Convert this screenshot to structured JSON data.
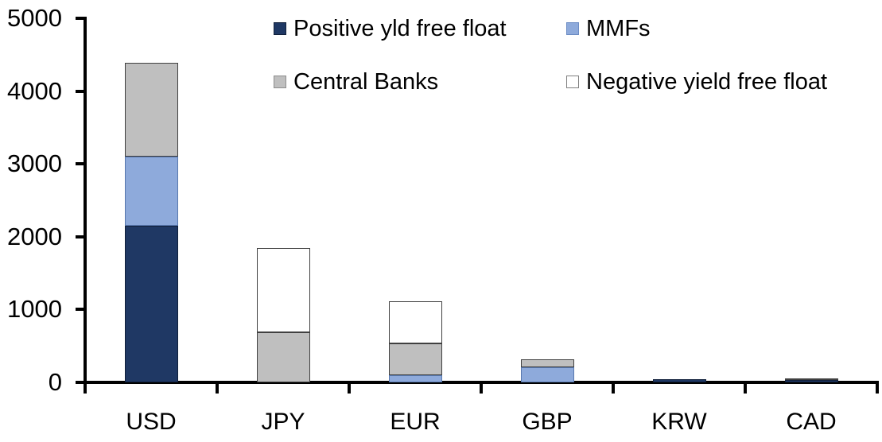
{
  "chart_data": {
    "type": "bar",
    "stacked": true,
    "title": "",
    "xlabel": "",
    "ylabel": "",
    "categories": [
      "USD",
      "JPY",
      "EUR",
      "GBP",
      "KRW",
      "CAD"
    ],
    "series": [
      {
        "name": "Positive yld free float",
        "color": "#1F3864",
        "border": "#11203B",
        "swatch_border": "#11203B",
        "values": [
          2150,
          0,
          0,
          0,
          45,
          30
        ]
      },
      {
        "name": "MMFs",
        "color": "#8EAADB",
        "border": "#5878AE",
        "swatch_border": "#6C8CC4",
        "values": [
          950,
          0,
          100,
          210,
          0,
          0
        ]
      },
      {
        "name": "Central Banks",
        "color": "#BFBFBF",
        "border": "#404040",
        "swatch_border": "#8C8C8C",
        "values": [
          1290,
          690,
          440,
          110,
          0,
          30
        ]
      },
      {
        "name": "Negative yield free float",
        "color": "#FFFFFF",
        "border": "#404040",
        "swatch_border": "#7F7F7F",
        "values": [
          0,
          1160,
          570,
          0,
          0,
          0
        ]
      }
    ],
    "totals": {
      "USD": 4390,
      "JPY": 1850,
      "EUR": 1110,
      "GBP": 320,
      "KRW": 45,
      "CAD": 60
    },
    "ylim": [
      0,
      5000
    ],
    "yticks": [
      0,
      1000,
      2000,
      3000,
      4000,
      5000
    ],
    "grid": false,
    "legend_position": "top",
    "legend_rows": [
      [
        "Positive yld free float",
        "MMFs"
      ],
      [
        "Central Banks",
        "Negative yield free float"
      ]
    ],
    "axis_color": "#000000",
    "background_color": "#FFFFFF"
  }
}
